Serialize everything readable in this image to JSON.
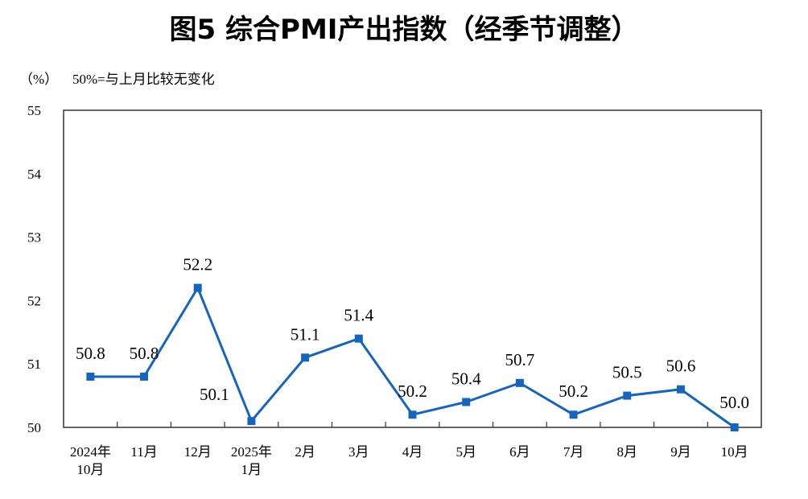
{
  "chart_data": {
    "type": "line",
    "title": "图5  综合PMI产出指数（经季节调整）",
    "unit_label": "（%）",
    "note": "50%=与上月比较无变化",
    "categories": [
      [
        "2024年",
        "10月"
      ],
      [
        "11月"
      ],
      [
        "12月"
      ],
      [
        "2025年",
        "1月"
      ],
      [
        "2月"
      ],
      [
        "3月"
      ],
      [
        "4月"
      ],
      [
        "5月"
      ],
      [
        "6月"
      ],
      [
        "7月"
      ],
      [
        "8月"
      ],
      [
        "9月"
      ],
      [
        "10月"
      ]
    ],
    "values": [
      50.8,
      50.8,
      52.2,
      50.1,
      51.1,
      51.4,
      50.2,
      50.4,
      50.7,
      50.2,
      50.5,
      50.6,
      50.0
    ],
    "data_labels": [
      "50.8",
      "50.8",
      "52.2",
      "50.1",
      "51.1",
      "51.4",
      "50.2",
      "50.4",
      "50.7",
      "50.2",
      "50.5",
      "50.6",
      "50.0"
    ],
    "yticks": [
      "50",
      "51",
      "52",
      "53",
      "54",
      "55"
    ],
    "ylim": [
      50,
      55
    ],
    "grid": false,
    "line_color": "#1565C0",
    "marker": "square"
  }
}
